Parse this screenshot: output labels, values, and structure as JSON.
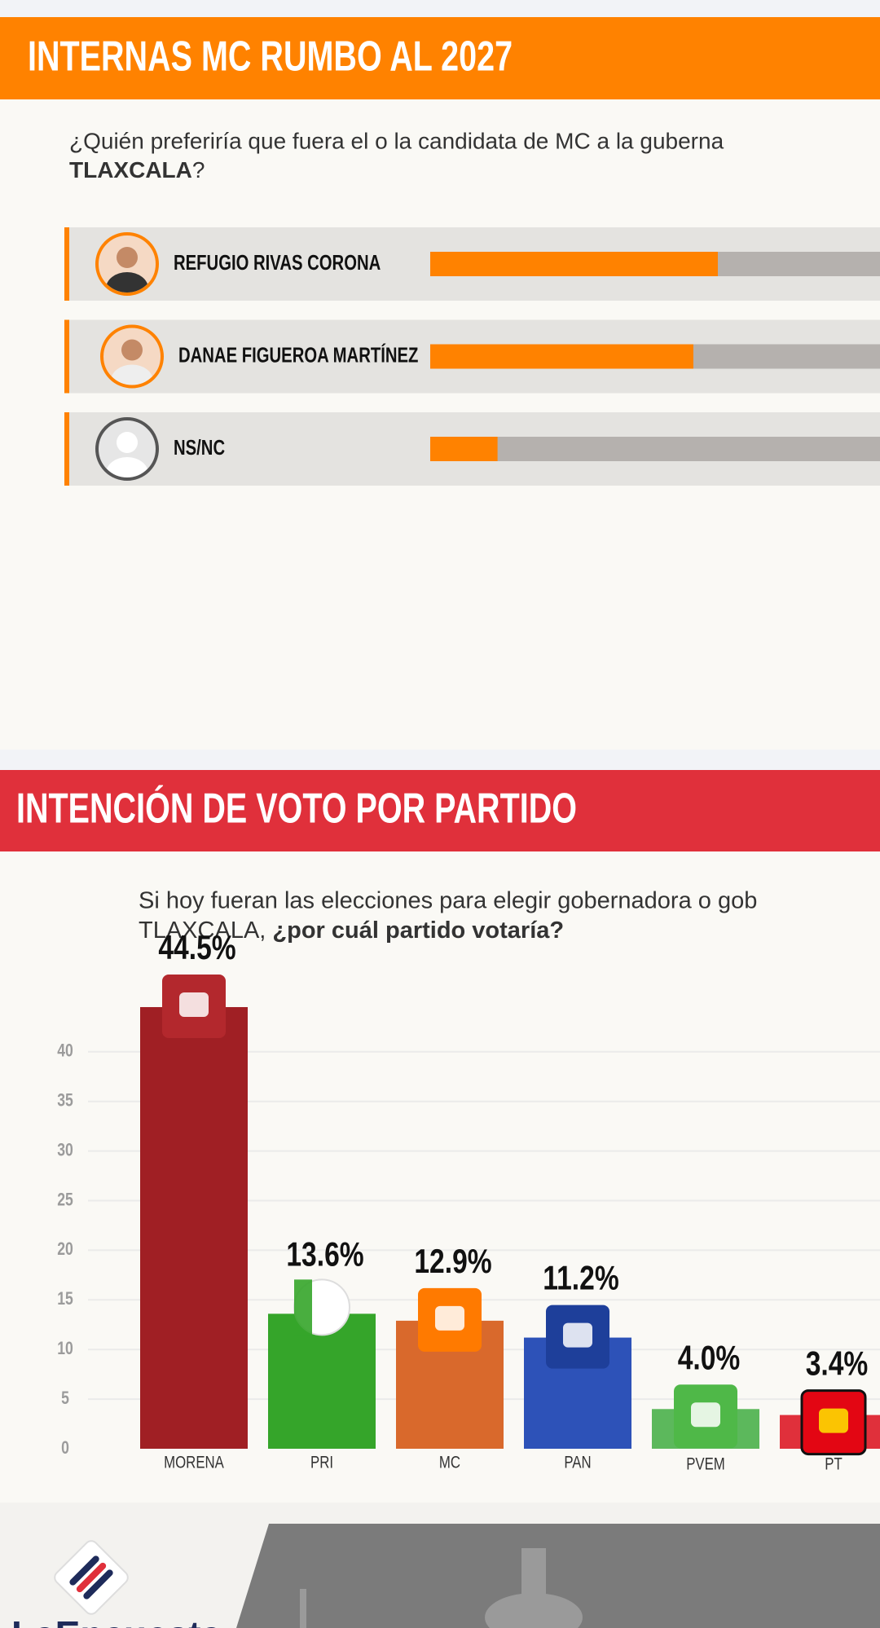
{
  "chart_data": [
    {
      "type": "hbar",
      "title": "INTERNAS MC RUMBO AL 2027",
      "subtitle": [
        "¿Quién preferiría que fuera el o la candidata de MC a la guberna",
        "TLAXCALA",
        "?"
      ],
      "categories": [
        "REFUGIO RIVAS CORONA",
        "DANAE FIGUEROA MARTÍNEZ",
        "NS/NC"
      ],
      "values": [
        47,
        43,
        11
      ],
      "color": "#ff8200",
      "xlim": [
        0,
        100
      ]
    },
    {
      "type": "bar",
      "title": "INTENCIÓN DE VOTO POR PARTIDO",
      "subtitle": [
        "Si hoy fueran las elecciones para elegir gobernadora o gob",
        "TLAXCALA, ",
        "¿por cuál partido votaría?"
      ],
      "categories": [
        "MORENA",
        "PRI",
        "MC",
        "PAN",
        "PVEM",
        "PT"
      ],
      "values": [
        44.5,
        13.6,
        12.9,
        11.2,
        4.0,
        3.4
      ],
      "value_labels": [
        "44.5%",
        "13.6%",
        "12.9%",
        "11.2%",
        "4.0%",
        "3.4%"
      ],
      "colors": [
        "#a01f24",
        "#35a52a",
        "#d9692c",
        "#2d52b8",
        "#5cb85c",
        "#e0303b"
      ],
      "ylim": [
        0,
        45
      ],
      "yticks": [
        0,
        5,
        10,
        15,
        20,
        25,
        30,
        35,
        40
      ],
      "grid": true
    }
  ],
  "footer": {
    "brand": "LaEncuesta"
  }
}
